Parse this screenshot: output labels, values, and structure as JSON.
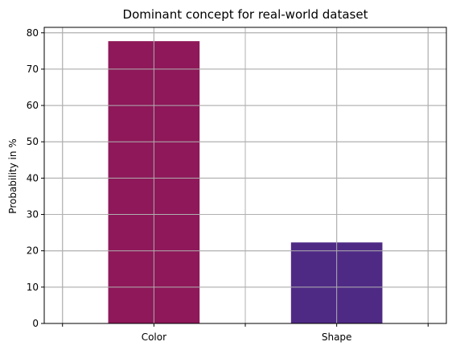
{
  "chart_data": {
    "type": "bar",
    "title": "Dominant concept for real-world dataset",
    "xlabel": "",
    "ylabel": "Probability in %",
    "categories": [
      "Color",
      "Shape"
    ],
    "values": [
      77.7,
      22.3
    ],
    "colors": [
      "#8E1859",
      "#4F2A85"
    ],
    "ylim": [
      0,
      81.5
    ],
    "yticks": [
      0,
      10,
      20,
      30,
      40,
      50,
      60,
      70,
      80
    ],
    "grid": true,
    "legend": "none"
  }
}
